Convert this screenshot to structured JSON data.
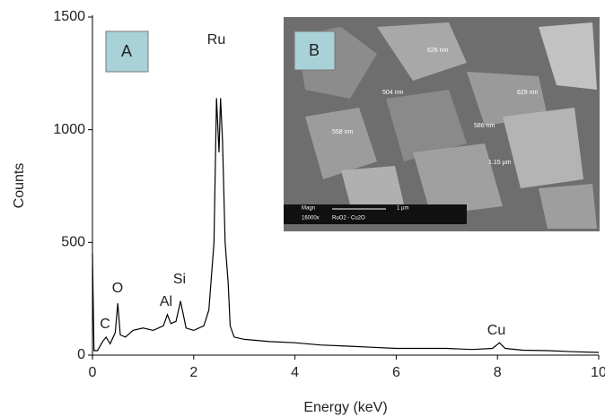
{
  "chart_data": {
    "type": "line",
    "xlabel": "Energy (keV)",
    "ylabel": "Counts",
    "x": [
      0,
      0.03,
      0.1,
      0.2,
      0.27,
      0.35,
      0.45,
      0.5,
      0.55,
      0.65,
      0.8,
      1.0,
      1.2,
      1.4,
      1.48,
      1.55,
      1.65,
      1.74,
      1.85,
      2.0,
      2.2,
      2.3,
      2.4,
      2.45,
      2.5,
      2.53,
      2.57,
      2.62,
      2.68,
      2.72,
      2.8,
      3.0,
      3.5,
      4.0,
      4.5,
      5.0,
      5.5,
      6.0,
      6.5,
      7.0,
      7.5,
      7.9,
      8.04,
      8.15,
      8.5,
      9.0,
      9.5,
      10.0
    ],
    "values": [
      450,
      20,
      20,
      60,
      80,
      50,
      100,
      230,
      90,
      80,
      110,
      120,
      110,
      130,
      180,
      140,
      150,
      240,
      120,
      110,
      130,
      200,
      500,
      1140,
      900,
      1140,
      950,
      500,
      320,
      130,
      80,
      70,
      60,
      55,
      45,
      40,
      35,
      30,
      30,
      30,
      25,
      30,
      55,
      30,
      22,
      20,
      15,
      12
    ],
    "color": "#000000",
    "xlim": [
      0,
      10
    ],
    "xticks": [
      0,
      2,
      4,
      6,
      8,
      10
    ],
    "ylim": [
      0,
      1500
    ],
    "yticks": [
      0,
      500,
      1000,
      1500
    ],
    "annotations": [
      "A",
      "B",
      "Ru",
      "Si",
      "Al",
      "O",
      "C",
      "Cu",
      "626 nm",
      "504 nm",
      "629 nm",
      "558 nm",
      "586 nm",
      "1.15 μm",
      "Magn",
      "1 μm",
      "16000x",
      "RuO2 - Cu2O"
    ]
  }
}
